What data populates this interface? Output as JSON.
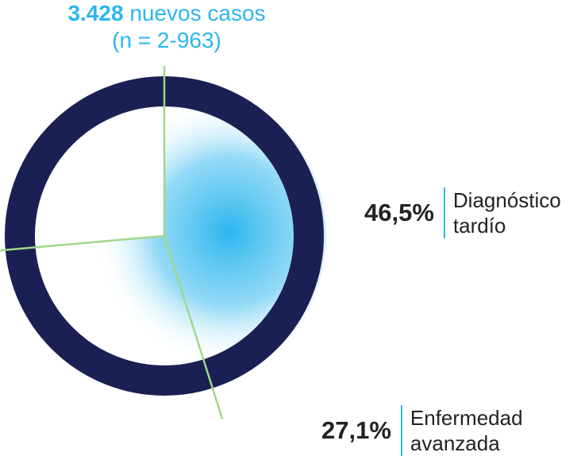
{
  "colors": {
    "ring": "#1b2054",
    "accent": "#2bb6ee",
    "divider": "#9fd88a",
    "text": "#222222"
  },
  "header": {
    "count": "3.428",
    "count_text": "nuevos casos",
    "sample": "(n = 2-963)"
  },
  "chart_data": {
    "type": "pie",
    "title": "3.428 nuevos casos (n = 2-963)",
    "series": [
      {
        "label_value": "46,5%",
        "label_text": [
          "Diagnóstico",
          "tardío"
        ],
        "value": 46.5
      },
      {
        "label_value": "27,1%",
        "label_text": [
          "Enfermedad",
          "avanzada"
        ],
        "value": 27.1
      }
    ]
  }
}
